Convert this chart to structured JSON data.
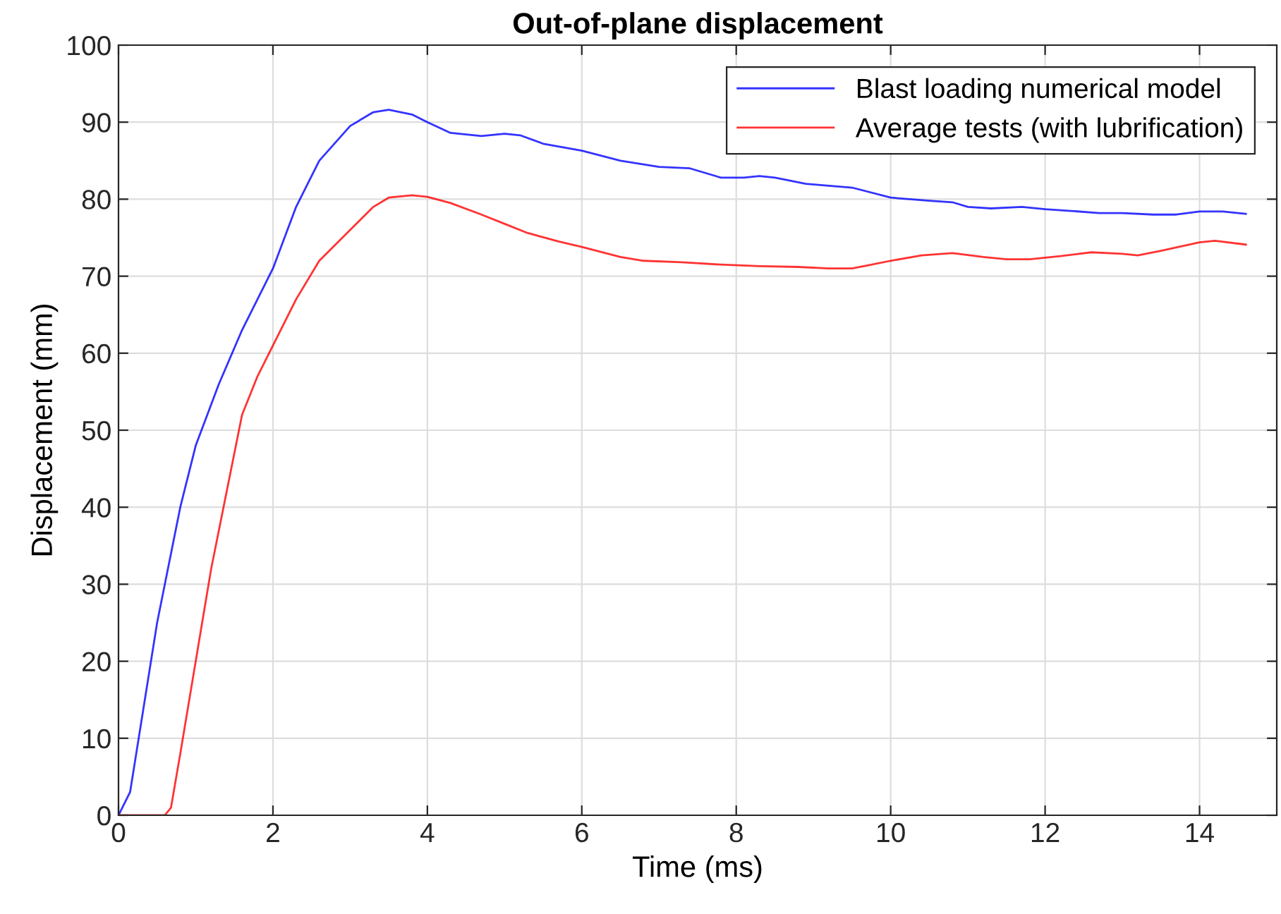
{
  "chart_data": {
    "type": "line",
    "title": "Out-of-plane displacement",
    "xlabel": "Time (ms)",
    "ylabel": "Displacement (mm)",
    "xlim": [
      0,
      15
    ],
    "xticks": [
      0,
      2,
      4,
      6,
      8,
      10,
      12,
      14
    ],
    "ylim": [
      0,
      100
    ],
    "yticks": [
      0,
      10,
      20,
      30,
      40,
      50,
      60,
      70,
      80,
      90,
      100
    ],
    "grid": true,
    "legend": "top right",
    "series": [
      {
        "name": "Blast loading numerical model",
        "color": "#0000ff",
        "x": [
          0,
          0.15,
          0.5,
          0.8,
          1.0,
          1.3,
          1.6,
          2.0,
          2.3,
          2.6,
          3.0,
          3.3,
          3.5,
          3.8,
          4.0,
          4.3,
          4.7,
          5.0,
          5.2,
          5.5,
          6.0,
          6.5,
          7.0,
          7.4,
          7.8,
          8.1,
          8.3,
          8.5,
          8.9,
          9.5,
          10,
          10.5,
          10.8,
          11,
          11.3,
          11.7,
          12,
          12.3,
          12.7,
          13,
          13.4,
          13.7,
          14,
          14.3,
          14.6
        ],
        "values": [
          0,
          3,
          25,
          40,
          48,
          56,
          63,
          71,
          79,
          85,
          89.5,
          91.3,
          91.6,
          91,
          90,
          88.6,
          88.2,
          88.5,
          88.3,
          87.2,
          86.3,
          85,
          84.2,
          84,
          82.8,
          82.8,
          83,
          82.8,
          82,
          81.5,
          80.2,
          79.8,
          79.6,
          79,
          78.8,
          79,
          78.7,
          78.5,
          78.2,
          78.2,
          78,
          78,
          78.4,
          78.4,
          78.1
        ]
      },
      {
        "name": "Average tests (with lubrification)",
        "color": "#ff0000",
        "x": [
          0,
          0.6,
          0.68,
          0.8,
          1.0,
          1.2,
          1.4,
          1.6,
          1.8,
          2.0,
          2.3,
          2.6,
          3.0,
          3.3,
          3.5,
          3.8,
          4.0,
          4.3,
          4.7,
          5.0,
          5.3,
          5.7,
          6.0,
          6.5,
          6.8,
          7.3,
          7.8,
          8.3,
          8.8,
          9.2,
          9.5,
          9.7,
          10,
          10.4,
          10.8,
          11.2,
          11.5,
          11.8,
          12.2,
          12.6,
          13,
          13.2,
          13.5,
          14,
          14.2,
          14.6
        ],
        "values": [
          0,
          0,
          1,
          8,
          20,
          32,
          42,
          52,
          57,
          61,
          67,
          72,
          76,
          79,
          80.2,
          80.5,
          80.3,
          79.5,
          78,
          76.8,
          75.6,
          74.5,
          73.8,
          72.5,
          72,
          71.8,
          71.5,
          71.3,
          71.2,
          71,
          71,
          71.4,
          72,
          72.7,
          73,
          72.5,
          72.2,
          72.2,
          72.6,
          73.1,
          72.9,
          72.7,
          73.3,
          74.4,
          74.6,
          74.1
        ]
      }
    ]
  }
}
